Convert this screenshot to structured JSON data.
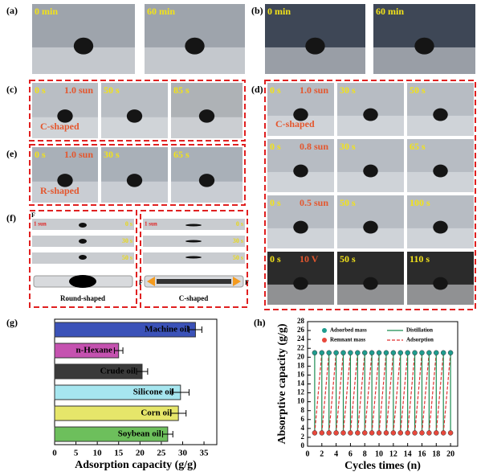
{
  "panels": [
    {
      "label": "(a)",
      "frames": [
        [
          "0 min"
        ],
        [
          "60 min"
        ]
      ]
    },
    {
      "label": "(b)",
      "frames": [
        [
          "0 min"
        ],
        [
          "60 min"
        ]
      ]
    },
    {
      "label": "(c)",
      "frames": [
        [
          "0 s",
          "1.0 sun",
          "C-shaped"
        ],
        [
          "50 s"
        ],
        [
          "85 s"
        ]
      ]
    },
    {
      "label": "(e)",
      "frames": [
        [
          "0 s",
          "1.0 sun",
          "R-shaped"
        ],
        [
          "30 s"
        ],
        [
          "65 s"
        ]
      ]
    },
    {
      "label": "(d)",
      "frames": [
        [
          "0 s",
          "1.0 sun",
          "C-shaped"
        ],
        [
          "30 s"
        ],
        [
          "50 s"
        ],
        [
          "0 s",
          "0.8 sun"
        ],
        [
          "30 s"
        ],
        [
          "65 s"
        ],
        [
          "0 s",
          "0.5 sun"
        ],
        [
          "50 s"
        ],
        [
          "100 s"
        ],
        [
          "0 s",
          "10 V"
        ],
        [
          "50 s"
        ],
        [
          "110 s"
        ]
      ]
    },
    {
      "label": "(f)",
      "frames": [
        [
          "1 sun",
          "0 s",
          "30 s",
          "50 s",
          "Round-shaped",
          "F"
        ],
        [
          "1 sun",
          "0 s",
          "30 s",
          "50 s",
          "C-shaped",
          "F",
          "F"
        ]
      ]
    }
  ],
  "chart_data": [
    {
      "type": "bar",
      "orientation": "horizontal",
      "label": "(g)",
      "categories": [
        "Machine oil",
        "n-Hexane",
        "Crude oil",
        "Silicone oil",
        "Corn oil",
        "Soybean oil"
      ],
      "values": [
        33,
        15,
        20.5,
        29.5,
        29,
        26.5
      ],
      "errors": [
        1.5,
        1,
        1.3,
        2,
        1.8,
        1.2
      ],
      "colors": [
        "#3b52b8",
        "#c552b0",
        "#3a3a3a",
        "#a6e6ef",
        "#e6e66a",
        "#6dbf5c"
      ],
      "xlim": [
        0,
        38
      ],
      "xticks": [
        0,
        5,
        10,
        15,
        20,
        25,
        30,
        35
      ],
      "xlabel": "Adsorption capacity (g/g)"
    },
    {
      "type": "line",
      "label": "(h)",
      "x": [
        1,
        2,
        3,
        4,
        5,
        6,
        7,
        8,
        9,
        10,
        11,
        12,
        13,
        14,
        15,
        16,
        17,
        18,
        19,
        20
      ],
      "series": [
        {
          "name": "Adsorbed mass",
          "color": "#1f9c8e",
          "values": [
            21,
            21,
            21,
            21,
            21,
            21,
            21,
            21,
            21,
            21,
            21,
            21,
            21,
            21,
            21,
            21,
            21,
            21,
            21,
            21
          ]
        },
        {
          "name": "Remnant mass",
          "color": "#e8483c",
          "values": [
            3,
            3,
            3,
            3,
            3,
            3,
            3,
            3,
            3,
            3,
            3,
            3,
            3,
            3,
            3,
            3,
            3,
            3,
            3,
            3
          ]
        }
      ],
      "lines": [
        {
          "name": "Distillation",
          "color": "#1a8c50"
        },
        {
          "name": "Adsorption",
          "color": "#e03030"
        }
      ],
      "xlim": [
        0,
        21
      ],
      "xticks": [
        0,
        2,
        4,
        6,
        8,
        10,
        12,
        14,
        16,
        18,
        20
      ],
      "ylim": [
        0,
        28
      ],
      "yticks": [
        0,
        2,
        4,
        6,
        8,
        10,
        12,
        14,
        16,
        18,
        20,
        22,
        24,
        26,
        28
      ],
      "xlabel": "Cycles times (n)",
      "ylabel": "Absorptive capacity (g/g)"
    }
  ]
}
